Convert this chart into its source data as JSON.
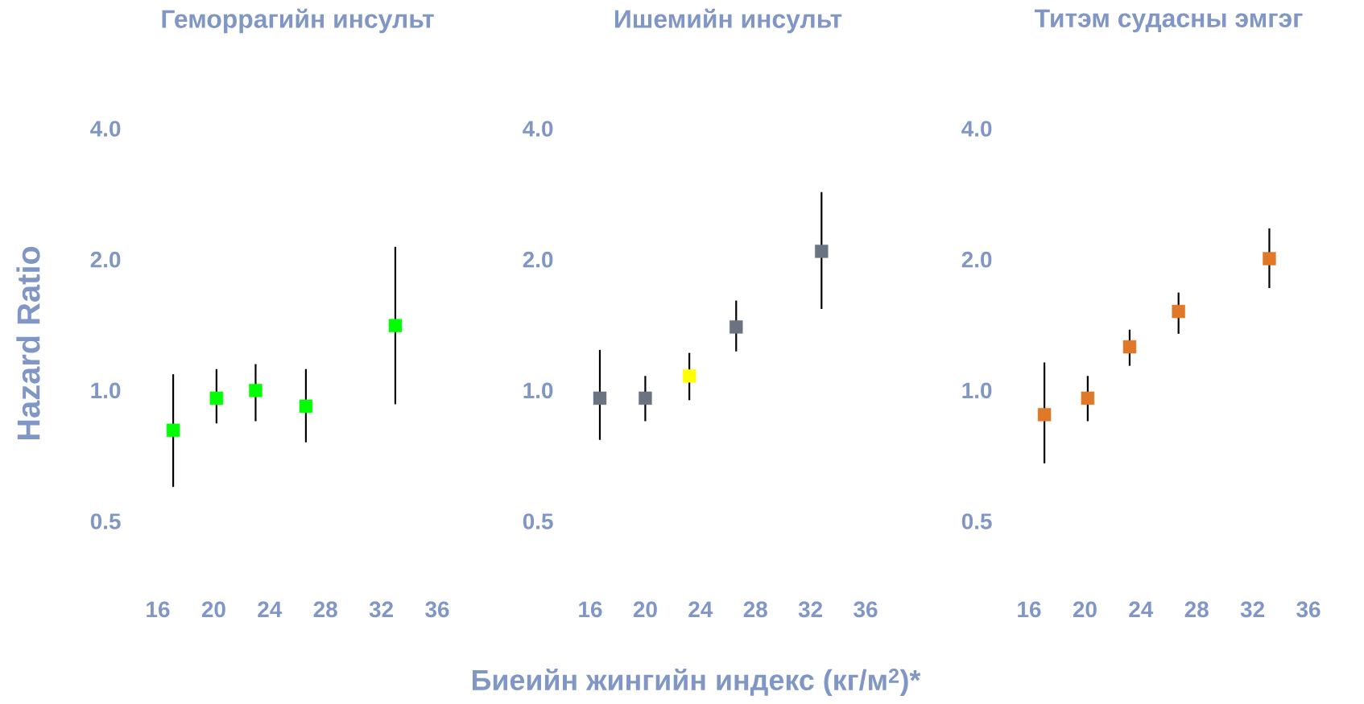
{
  "chart_data": [
    {
      "type": "scatter",
      "title": "Геморрагийн инсульт",
      "ylabel": "Hazard Ratio",
      "marker": "square",
      "log": "y",
      "xlim": [
        16,
        36
      ],
      "ylim": [
        0.5,
        4
      ],
      "xticks": [
        16,
        20,
        24,
        28,
        32,
        36
      ],
      "yticks": [
        {
          "value": 0.5,
          "label": "0.5"
        },
        {
          "value": 1,
          "label": "1.0"
        },
        {
          "value": 2,
          "label": "2.0"
        },
        {
          "value": 4,
          "label": "4.0"
        }
      ],
      "x": [
        17.1,
        20.2,
        23.0,
        26.6,
        33.0
      ],
      "values": [
        0.81,
        0.96,
        1.0,
        0.92,
        1.41
      ],
      "errors": [
        [
          0.6,
          1.09
        ],
        [
          0.84,
          1.12
        ],
        [
          0.85,
          1.15
        ],
        [
          0.76,
          1.12
        ],
        [
          0.93,
          2.14
        ]
      ],
      "colors": [
        "#00ff00",
        "#00ff00",
        "#00ff00",
        "#00ff00",
        "#00ff00"
      ]
    },
    {
      "type": "scatter",
      "title": "Ишемийн инсульт",
      "xlabel": "Биеийн жингийн индекс (кг/м$^{2}$)*",
      "marker": "square",
      "log": "y",
      "xlim": [
        16,
        36
      ],
      "ylim": [
        0.5,
        4
      ],
      "xticks": [
        16,
        20,
        24,
        28,
        32,
        36
      ],
      "yticks": [
        {
          "value": 0.5,
          "label": "0.5"
        },
        {
          "value": 1,
          "label": "1.0"
        },
        {
          "value": 2,
          "label": "2.0"
        },
        {
          "value": 4,
          "label": "4.0"
        }
      ],
      "x": [
        16.7,
        20.0,
        23.2,
        26.6,
        32.8
      ],
      "values": [
        0.96,
        0.96,
        1.08,
        1.4,
        2.09
      ],
      "errors": [
        [
          0.77,
          1.24
        ],
        [
          0.85,
          1.08
        ],
        [
          0.95,
          1.22
        ],
        [
          1.23,
          1.61
        ],
        [
          1.54,
          2.86
        ]
      ],
      "colors": [
        "#6b7382",
        "#6b7382",
        "#ffff00",
        "#6b7382",
        "#6b7382"
      ]
    },
    {
      "type": "scatter",
      "title": "Титэм судасны эмгэг",
      "marker": "square",
      "log": "y",
      "xlim": [
        16,
        36
      ],
      "ylim": [
        0.5,
        4
      ],
      "xticks": [
        16,
        20,
        24,
        28,
        32,
        36
      ],
      "yticks": [
        {
          "value": 0.5,
          "label": "0.5"
        },
        {
          "value": 1,
          "label": "1.0"
        },
        {
          "value": 2,
          "label": "2.0"
        },
        {
          "value": 4,
          "label": "4.0"
        }
      ],
      "x": [
        17.1,
        20.2,
        23.2,
        26.7,
        33.2
      ],
      "values": [
        0.88,
        0.96,
        1.26,
        1.52,
        2.01
      ],
      "errors": [
        [
          0.68,
          1.16
        ],
        [
          0.85,
          1.08
        ],
        [
          1.14,
          1.38
        ],
        [
          1.35,
          1.68
        ],
        [
          1.72,
          2.36
        ]
      ],
      "colors": [
        "#e07828",
        "#e07828",
        "#e07828",
        "#e07828",
        "#e07828"
      ]
    }
  ]
}
